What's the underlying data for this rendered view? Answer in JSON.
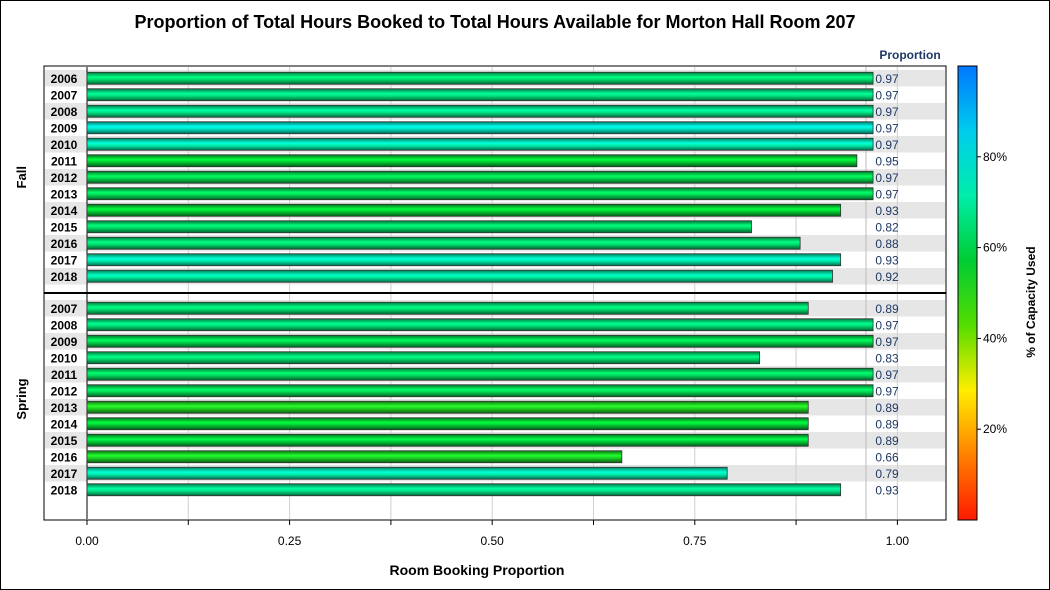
{
  "chart_data": {
    "type": "bar",
    "orientation": "horizontal",
    "title": "Proportion of Total Hours Booked to Total Hours Available for Morton Hall Room 207",
    "xlabel": "Room Booking Proportion",
    "xlim": [
      0,
      1.06
    ],
    "xticks": [
      "0.00",
      "0.25",
      "0.50",
      "0.75",
      "1.00"
    ],
    "value_column_header": "Proportion",
    "colorbar": {
      "label": "% of Capacity Used",
      "ticks": [
        "20%",
        "40%",
        "60%",
        "80%"
      ],
      "range": [
        0,
        100
      ],
      "colors": [
        "#ff1a00",
        "#ff8000",
        "#ffee00",
        "#55dd00",
        "#00cc33",
        "#00eeaa",
        "#00ccee",
        "#0077ff"
      ]
    },
    "groups": [
      {
        "name": "Fall",
        "bars": [
          {
            "year": "2006",
            "value": 0.97,
            "label": "0.97",
            "capacity": 64
          },
          {
            "year": "2007",
            "value": 0.97,
            "label": "0.97",
            "capacity": 66
          },
          {
            "year": "2008",
            "value": 0.97,
            "label": "0.97",
            "capacity": 67
          },
          {
            "year": "2009",
            "value": 0.97,
            "label": "0.97",
            "capacity": 76
          },
          {
            "year": "2010",
            "value": 0.97,
            "label": "0.97",
            "capacity": 72
          },
          {
            "year": "2011",
            "value": 0.95,
            "label": "0.95",
            "capacity": 57
          },
          {
            "year": "2012",
            "value": 0.97,
            "label": "0.97",
            "capacity": 60
          },
          {
            "year": "2013",
            "value": 0.97,
            "label": "0.97",
            "capacity": 61
          },
          {
            "year": "2014",
            "value": 0.93,
            "label": "0.93",
            "capacity": 57
          },
          {
            "year": "2015",
            "value": 0.82,
            "label": "0.82",
            "capacity": 63
          },
          {
            "year": "2016",
            "value": 0.88,
            "label": "0.88",
            "capacity": 64
          },
          {
            "year": "2017",
            "value": 0.93,
            "label": "0.93",
            "capacity": 72
          },
          {
            "year": "2018",
            "value": 0.92,
            "label": "0.92",
            "capacity": 70
          }
        ]
      },
      {
        "name": "Spring",
        "bars": [
          {
            "year": "2007",
            "value": 0.89,
            "label": "0.89",
            "capacity": 64
          },
          {
            "year": "2008",
            "value": 0.97,
            "label": "0.97",
            "capacity": 65
          },
          {
            "year": "2009",
            "value": 0.97,
            "label": "0.97",
            "capacity": 60
          },
          {
            "year": "2010",
            "value": 0.83,
            "label": "0.83",
            "capacity": 64
          },
          {
            "year": "2011",
            "value": 0.97,
            "label": "0.97",
            "capacity": 62
          },
          {
            "year": "2012",
            "value": 0.97,
            "label": "0.97",
            "capacity": 61
          },
          {
            "year": "2013",
            "value": 0.89,
            "label": "0.89",
            "capacity": 52
          },
          {
            "year": "2014",
            "value": 0.89,
            "label": "0.89",
            "capacity": 57
          },
          {
            "year": "2015",
            "value": 0.89,
            "label": "0.89",
            "capacity": 58
          },
          {
            "year": "2016",
            "value": 0.66,
            "label": "0.66",
            "capacity": 53
          },
          {
            "year": "2017",
            "value": 0.79,
            "label": "0.79",
            "capacity": 72
          },
          {
            "year": "2018",
            "value": 0.93,
            "label": "0.93",
            "capacity": 67
          }
        ]
      }
    ]
  }
}
